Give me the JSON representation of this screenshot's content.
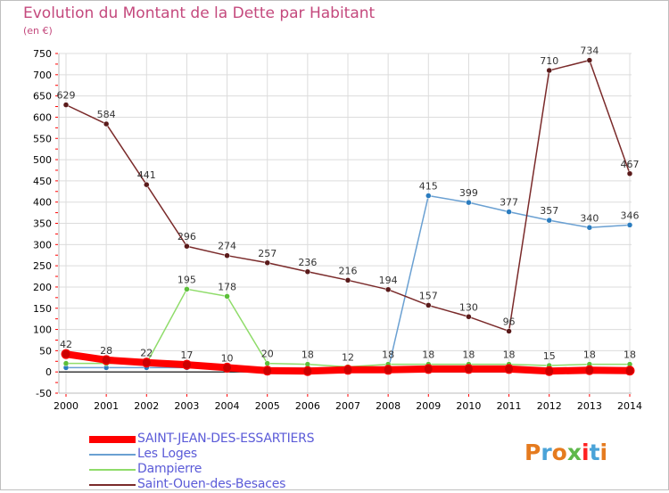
{
  "colors": {
    "title": "#c4497d",
    "legend_text": "#5b5bd8",
    "grid": "#dcdcdc",
    "axis_text": "#000000",
    "zero_line": "#000000",
    "tick_red": "#ff0000"
  },
  "logo": {
    "text": "Proxiti",
    "letter_colors": [
      "#e57b1f",
      "#4aa3d8",
      "#e57b1f",
      "#5fb84b",
      "#ff2222",
      "#4aa3d8",
      "#e57b1f"
    ]
  },
  "chart_data": {
    "type": "line",
    "title": "Evolution du Montant de la Dette par Habitant",
    "subtitle": "(en €)",
    "xlabel": "",
    "ylabel": "",
    "x": [
      "2000",
      "2001",
      "2002",
      "2003",
      "2004",
      "2005",
      "2006",
      "2007",
      "2008",
      "2009",
      "2010",
      "2011",
      "2012",
      "2013",
      "2014"
    ],
    "ylim": [
      -50,
      750
    ],
    "yticks": [
      -50,
      0,
      50,
      100,
      150,
      200,
      250,
      300,
      350,
      400,
      450,
      500,
      550,
      600,
      650,
      700,
      750
    ],
    "grid": true,
    "legend_position": "bottom-left",
    "series": [
      {
        "name": "SAINT-JEAN-DES-ESSARTIERS",
        "color": "#ff0000",
        "marker": "#cc0000",
        "width": 8,
        "values": [
          42,
          28,
          22,
          17,
          10,
          3,
          2,
          5,
          5,
          7,
          7,
          7,
          2,
          4,
          3
        ],
        "labels": [
          "42",
          "28",
          "22",
          "17",
          "10",
          "",
          "",
          "",
          "",
          "",
          "",
          "",
          "",
          "",
          ""
        ]
      },
      {
        "name": "Les Loges",
        "color": "#6aa0d2",
        "marker": "#2a7cbf",
        "width": 1.5,
        "values": [
          10,
          10,
          10,
          10,
          9,
          9,
          9,
          9,
          5,
          415,
          399,
          377,
          357,
          340,
          346
        ],
        "labels": [
          "",
          "",
          "",
          "",
          "",
          "",
          "",
          "",
          "",
          "415",
          "399",
          "377",
          "357",
          "340",
          "346"
        ]
      },
      {
        "name": "Dampierre",
        "color": "#8fdc6a",
        "marker": "#5cbf3a",
        "width": 1.5,
        "values": [
          20,
          20,
          20,
          195,
          178,
          20,
          18,
          12,
          18,
          18,
          18,
          18,
          15,
          18,
          18
        ],
        "labels": [
          "",
          "",
          "",
          "195",
          "178",
          "20",
          "18",
          "12",
          "18",
          "18",
          "18",
          "18",
          "15",
          "18",
          "18"
        ]
      },
      {
        "name": "Saint-Ouen-des-Besaces",
        "color": "#7a2a2a",
        "marker": "#5a1a1a",
        "width": 1.5,
        "values": [
          629,
          584,
          441,
          296,
          274,
          257,
          236,
          216,
          194,
          157,
          130,
          96,
          710,
          734,
          467
        ],
        "labels": [
          "629",
          "584",
          "441",
          "296",
          "274",
          "257",
          "236",
          "216",
          "194",
          "157",
          "130",
          "96",
          "710",
          "734",
          "467"
        ]
      }
    ]
  }
}
